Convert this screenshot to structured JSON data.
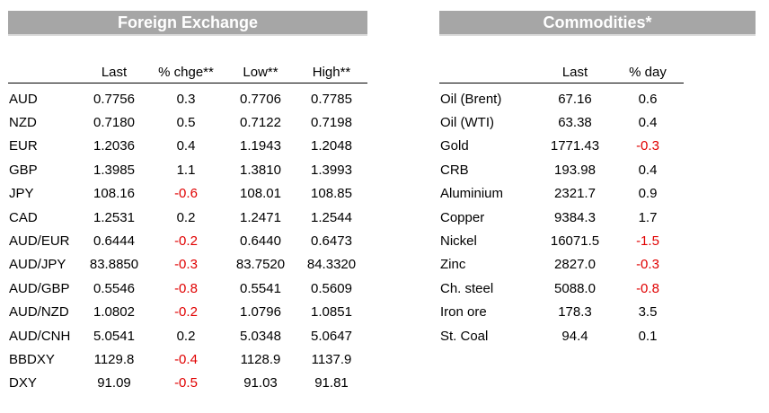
{
  "fx": {
    "title": "Foreign Exchange",
    "headers": [
      "",
      "Last",
      "% chge**",
      "Low**",
      "High**"
    ],
    "rows": [
      [
        "AUD",
        "0.7756",
        "0.3",
        "0.7706",
        "0.7785"
      ],
      [
        "NZD",
        "0.7180",
        "0.5",
        "0.7122",
        "0.7198"
      ],
      [
        "EUR",
        "1.2036",
        "0.4",
        "1.1943",
        "1.2048"
      ],
      [
        "GBP",
        "1.3985",
        "1.1",
        "1.3810",
        "1.3993"
      ],
      [
        "JPY",
        "108.16",
        "-0.6",
        "108.01",
        "108.85"
      ],
      [
        "CAD",
        "1.2531",
        "0.2",
        "1.2471",
        "1.2544"
      ],
      [
        "AUD/EUR",
        "0.6444",
        "-0.2",
        "0.6440",
        "0.6473"
      ],
      [
        "AUD/JPY",
        "83.8850",
        "-0.3",
        "83.7520",
        "84.3320"
      ],
      [
        "AUD/GBP",
        "0.5546",
        "-0.8",
        "0.5541",
        "0.5609"
      ],
      [
        "AUD/NZD",
        "1.0802",
        "-0.2",
        "1.0796",
        "1.0851"
      ],
      [
        "AUD/CNH",
        "5.0541",
        "0.2",
        "5.0348",
        "5.0647"
      ],
      [
        "BBDXY",
        "1129.8",
        "-0.4",
        "1128.9",
        "1137.9"
      ],
      [
        "DXY",
        "91.09",
        "-0.5",
        "91.03",
        "91.81"
      ]
    ]
  },
  "commodities": {
    "title": "Commodities*",
    "headers": [
      "",
      "Last",
      "% day"
    ],
    "rows": [
      [
        "Oil (Brent)",
        "67.16",
        "0.6"
      ],
      [
        "Oil (WTI)",
        "63.38",
        "0.4"
      ],
      [
        "Gold",
        "1771.43",
        "-0.3"
      ],
      [
        "CRB",
        "193.98",
        "0.4"
      ],
      [
        "Aluminium",
        "2321.7",
        "0.9"
      ],
      [
        "Copper",
        "9384.3",
        "1.7"
      ],
      [
        "Nickel",
        "16071.5",
        "-1.5"
      ],
      [
        "Zinc",
        "2827.0",
        "-0.3"
      ],
      [
        "Ch. steel",
        "5088.0",
        "-0.8"
      ],
      [
        "Iron ore",
        "178.3",
        "3.5"
      ],
      [
        "St. Coal",
        "94.4",
        "0.1"
      ]
    ]
  },
  "colors": {
    "banner": "#a6a6a6",
    "negative": "#e00000"
  }
}
